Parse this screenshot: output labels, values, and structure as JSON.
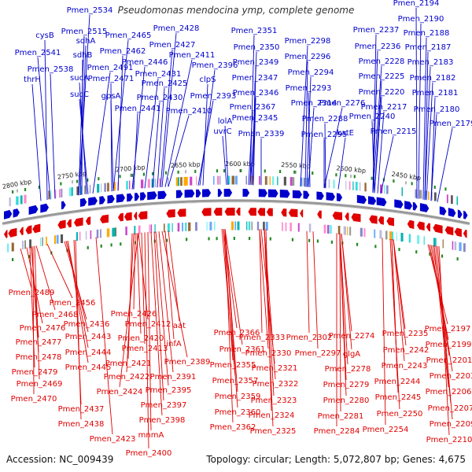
{
  "title": "Pseudomonas mendocina ymp, complete genome",
  "accession": "Accession: NC_009439",
  "summary": "Topology: circular; Length: 5,072,807 bp; Genes: 4,675",
  "colors": {
    "forward": "#0000cc",
    "reverse": "#e00000",
    "backbone": "#999999",
    "rna": "#228b22",
    "cog_palette": [
      "#00b3b3",
      "#33dddd",
      "#77eeee",
      "#8888cc",
      "#bbbbdd",
      "#cc44cc",
      "#ff88cc",
      "#ffaa00",
      "#996633",
      "#999999",
      "#555555",
      "#66aaff"
    ]
  },
  "scale_labels": [
    "2800 kbp",
    "2750 kbp",
    "2700 kbp",
    "2650 kbp",
    "2600 kbp",
    "2550 kbp",
    "2500 kbp",
    "2450 kbp"
  ],
  "top_labels": [
    "Pmen_2534",
    "cysB",
    "Pmen_2541",
    "Pmen_2538",
    "thrH",
    "Pmen_2515",
    "sdhA",
    "sdhB",
    "sucA",
    "sucC",
    "Pmen_2491",
    "Pmen_2465",
    "Pmen_2462",
    "Pmen_2471",
    "gpsA",
    "Pmen_2446",
    "Pmen_2441",
    "Pmen_2428",
    "Pmen_2427",
    "Pmen_2411",
    "Pmen_2431",
    "Pmen_2425",
    "Pmen_2430",
    "Pmen_2396",
    "clpS",
    "Pmen_2393",
    "Pmen_2410",
    "Pmen_2351",
    "Pmen_2350",
    "Pmen_2349",
    "Pmen_2347",
    "Pmen_2346",
    "Pmen_2367",
    "Pmen_2345",
    "lolA",
    "uvrC",
    "Pmen_2339",
    "Pmen_2298",
    "Pmen_2296",
    "Pmen_2294",
    "Pmen_2293",
    "Pmen_2314",
    "Pmen_2276",
    "Pmen_2288",
    "Pmen_2295",
    "katE",
    "Pmen_2194",
    "Pmen_2190",
    "Pmen_2237",
    "Pmen_2188",
    "Pmen_2236",
    "Pmen_2187",
    "Pmen_2228",
    "Pmen_2183",
    "Pmen_2225",
    "Pmen_2182",
    "Pmen_2220",
    "Pmen_2181",
    "Pmen_2217",
    "Pmen_2180",
    "Pmen_2240",
    "Pmen_2215",
    "Pmen_2179"
  ],
  "bottom_labels": [
    "Pmen_2489",
    "Pmen_2456",
    "Pmen_2468",
    "Pmen_2476",
    "Pmen_2436",
    "Pmen_2477",
    "Pmen_2443",
    "Pmen_2444",
    "Pmen_2478",
    "Pmen_2445",
    "Pmen_2479",
    "Pmen_2469",
    "Pmen_2470",
    "Pmen_2437",
    "Pmen_2438",
    "Pmen_2423",
    "Pmen_2426",
    "Pmen_2412",
    "Pmen_2420",
    "Pmen_2413",
    "Pmen_2421",
    "Pmen_2422",
    "Pmen_2424",
    "aat",
    "infA",
    "Pmen_2389",
    "Pmen_2391",
    "Pmen_2395",
    "Pmen_2397",
    "Pmen_2398",
    "mnmA",
    "Pmen_2400",
    "Pmen_2366",
    "Pmen_2361",
    "Pmen_2355",
    "Pmen_2357",
    "Pmen_2359",
    "Pmen_2360",
    "Pmen_2362",
    "Pmen_2333",
    "Pmen_2330",
    "Pmen_2321",
    "Pmen_2322",
    "Pmen_2323",
    "Pmen_2324",
    "Pmen_2325",
    "Pmen_2302",
    "Pmen_2297",
    "Pmen_2274",
    "glgA",
    "Pmen_2278",
    "Pmen_2279",
    "Pmen_2280",
    "Pmen_2281",
    "Pmen_2284",
    "Pmen_2235",
    "Pmen_2242",
    "Pmen_2243",
    "Pmen_2244",
    "Pmen_2245",
    "Pmen_2250",
    "Pmen_2254",
    "Pmen_2197",
    "Pmen_2199",
    "Pmen_2201",
    "Pmen_2203",
    "Pmen_2206",
    "Pmen_2207",
    "Pmen_2209",
    "Pmen_2210"
  ]
}
